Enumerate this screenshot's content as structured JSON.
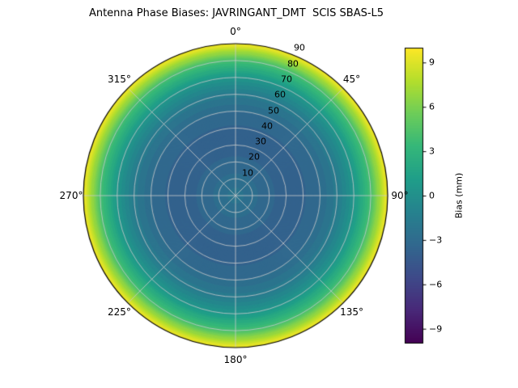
{
  "chart_data": {
    "type": "polar_contour",
    "title": "Antenna Phase Biases: JAVRINGANT_DMT  SCIS SBAS-L5",
    "angular_unit": "degrees",
    "theta_labels": [
      "0°",
      "45°",
      "90°",
      "135°",
      "180°",
      "225°",
      "270°",
      "315°"
    ],
    "theta_label_angles": [
      0,
      45,
      90,
      135,
      180,
      225,
      270,
      315
    ],
    "radial_ticks": [
      10,
      20,
      30,
      40,
      50,
      60,
      70,
      80,
      90
    ],
    "radial_tick_labels": [
      "10",
      "20",
      "30",
      "40",
      "50",
      "60",
      "70",
      "80",
      "90"
    ],
    "radial_label_angle_deg": 22.5,
    "radius_range": [
      0,
      90
    ],
    "profile": {
      "zenith_deg": [
        0,
        10,
        20,
        30,
        40,
        50,
        60,
        70,
        80,
        90
      ],
      "bias_mm": [
        -2.2,
        -2.8,
        -3.4,
        -3.7,
        -3.6,
        -3.0,
        -1.8,
        0.5,
        4.0,
        9.7
      ]
    },
    "levels_step_mm": 0.5,
    "grid_on": true,
    "grid_color": "#cccccc",
    "outline_color": "#000000",
    "colorbar": {
      "label": "Bias (mm)",
      "ticks": [
        9,
        6,
        3,
        0,
        -3,
        -6,
        -9
      ],
      "tick_labels": [
        "9",
        "6",
        "3",
        "0",
        "−3",
        "−6",
        "−9"
      ],
      "range": [
        -10,
        10
      ],
      "position": "right"
    },
    "colormap": {
      "name": "viridis",
      "stops": [
        [
          0.0,
          "#440154"
        ],
        [
          0.111,
          "#482878"
        ],
        [
          0.222,
          "#3e4a89"
        ],
        [
          0.333,
          "#31688e"
        ],
        [
          0.444,
          "#26828e"
        ],
        [
          0.556,
          "#1f9e89"
        ],
        [
          0.667,
          "#35b779"
        ],
        [
          0.778,
          "#6dcd59"
        ],
        [
          0.889,
          "#b4de2c"
        ],
        [
          1.0,
          "#fde725"
        ]
      ]
    }
  }
}
